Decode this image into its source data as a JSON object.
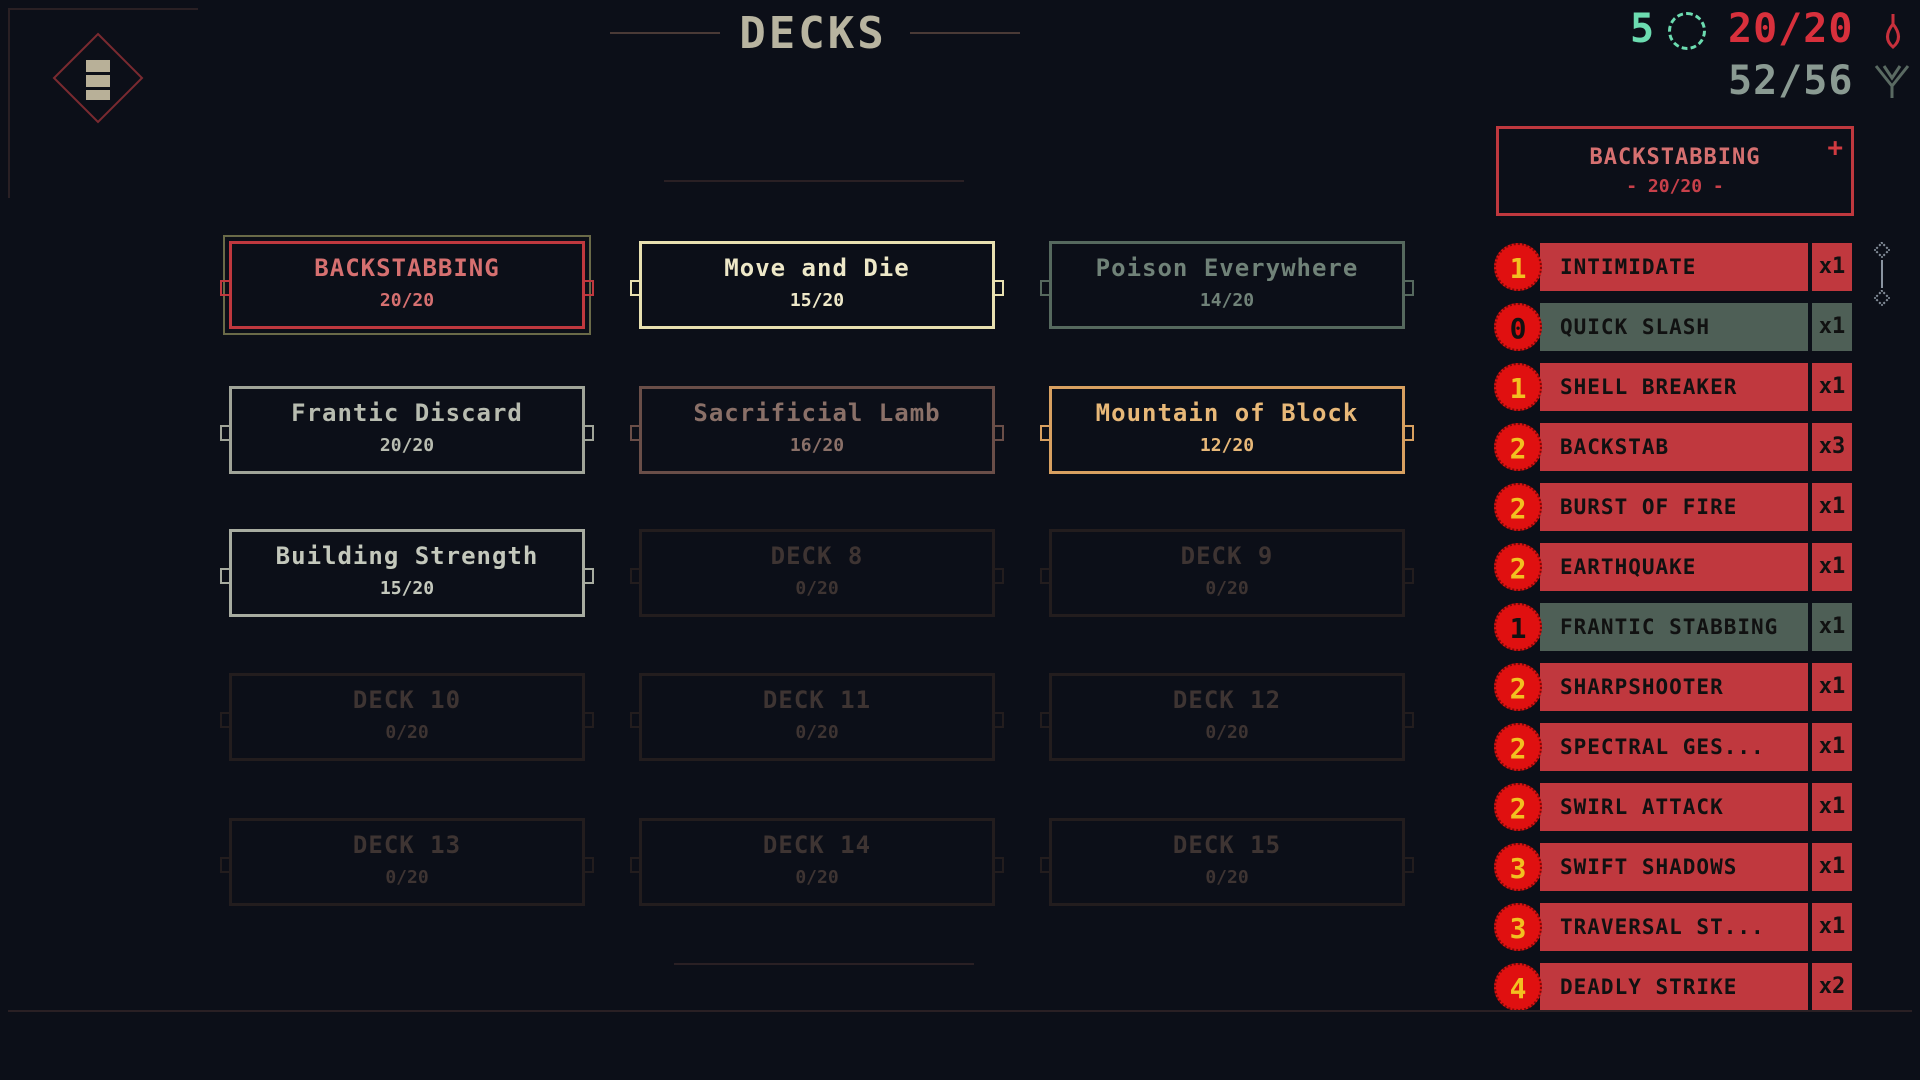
{
  "header": {
    "title": "DECKS"
  },
  "stats": {
    "energy": "5",
    "health": "20/20",
    "cards": "52/56"
  },
  "colors": {
    "red": "#c0383e",
    "green": "#4e5f56",
    "badge": "#e01010",
    "yellow": "#f2c020"
  },
  "decks": [
    {
      "name": "BACKSTABBING",
      "count": "20/20",
      "color": "#c0383e",
      "text": "#d67070",
      "selected": true
    },
    {
      "name": "Move and Die",
      "count": "15/20",
      "color": "#e8e0b0",
      "text": "#eee8c8",
      "hover": true
    },
    {
      "name": "Poison Everywhere",
      "count": "14/20",
      "color": "#56695e",
      "text": "#708278"
    },
    {
      "name": "Frantic Discard",
      "count": "20/20",
      "color": "#a0a498",
      "text": "#b8bcb0"
    },
    {
      "name": "Sacrificial Lamb",
      "count": "16/20",
      "color": "#6a4e48",
      "text": "#8a7068"
    },
    {
      "name": "Mountain of Block",
      "count": "12/20",
      "color": "#d8a060",
      "text": "#e8b878"
    },
    {
      "name": "Building Strength",
      "count": "15/20",
      "color": "#a8aca0",
      "text": "#c4c8bc"
    },
    {
      "name": "DECK 8",
      "count": "0/20",
      "color": "#231d1e",
      "text": "#3e3432"
    },
    {
      "name": "DECK 9",
      "count": "0/20",
      "color": "#231d1e",
      "text": "#3e3432"
    },
    {
      "name": "DECK 10",
      "count": "0/20",
      "color": "#231d1e",
      "text": "#3e3432"
    },
    {
      "name": "DECK 11",
      "count": "0/20",
      "color": "#231d1e",
      "text": "#3e3432"
    },
    {
      "name": "DECK 12",
      "count": "0/20",
      "color": "#231d1e",
      "text": "#3e3432"
    },
    {
      "name": "DECK 13",
      "count": "0/20",
      "color": "#231d1e",
      "text": "#3e3432"
    },
    {
      "name": "DECK 14",
      "count": "0/20",
      "color": "#231d1e",
      "text": "#3e3432"
    },
    {
      "name": "DECK 15",
      "count": "0/20",
      "color": "#231d1e",
      "text": "#3e3432"
    }
  ],
  "selected_deck": {
    "name": "BACKSTABBING",
    "count": "- 20/20 -"
  },
  "cards": [
    {
      "cost": "1",
      "name": "INTIMIDATE",
      "qty": "x1",
      "type": "red"
    },
    {
      "cost": "0",
      "name": "QUICK SLASH",
      "qty": "x1",
      "type": "green"
    },
    {
      "cost": "1",
      "name": "SHELL BREAKER",
      "qty": "x1",
      "type": "red"
    },
    {
      "cost": "2",
      "name": "BACKSTAB",
      "qty": "x3",
      "type": "red"
    },
    {
      "cost": "2",
      "name": "BURST OF FIRE",
      "qty": "x1",
      "type": "red"
    },
    {
      "cost": "2",
      "name": "EARTHQUAKE",
      "qty": "x1",
      "type": "red"
    },
    {
      "cost": "1",
      "name": "FRANTIC STABBING",
      "qty": "x1",
      "type": "green"
    },
    {
      "cost": "2",
      "name": "SHARPSHOOTER",
      "qty": "x1",
      "type": "red"
    },
    {
      "cost": "2",
      "name": "SPECTRAL GES...",
      "qty": "x1",
      "type": "red"
    },
    {
      "cost": "2",
      "name": "SWIRL ATTACK",
      "qty": "x1",
      "type": "red"
    },
    {
      "cost": "3",
      "name": "SWIFT SHADOWS",
      "qty": "x1",
      "type": "red"
    },
    {
      "cost": "3",
      "name": "TRAVERSAL ST...",
      "qty": "x1",
      "type": "red"
    },
    {
      "cost": "4",
      "name": "DEADLY STRIKE",
      "qty": "x2",
      "type": "red"
    }
  ]
}
